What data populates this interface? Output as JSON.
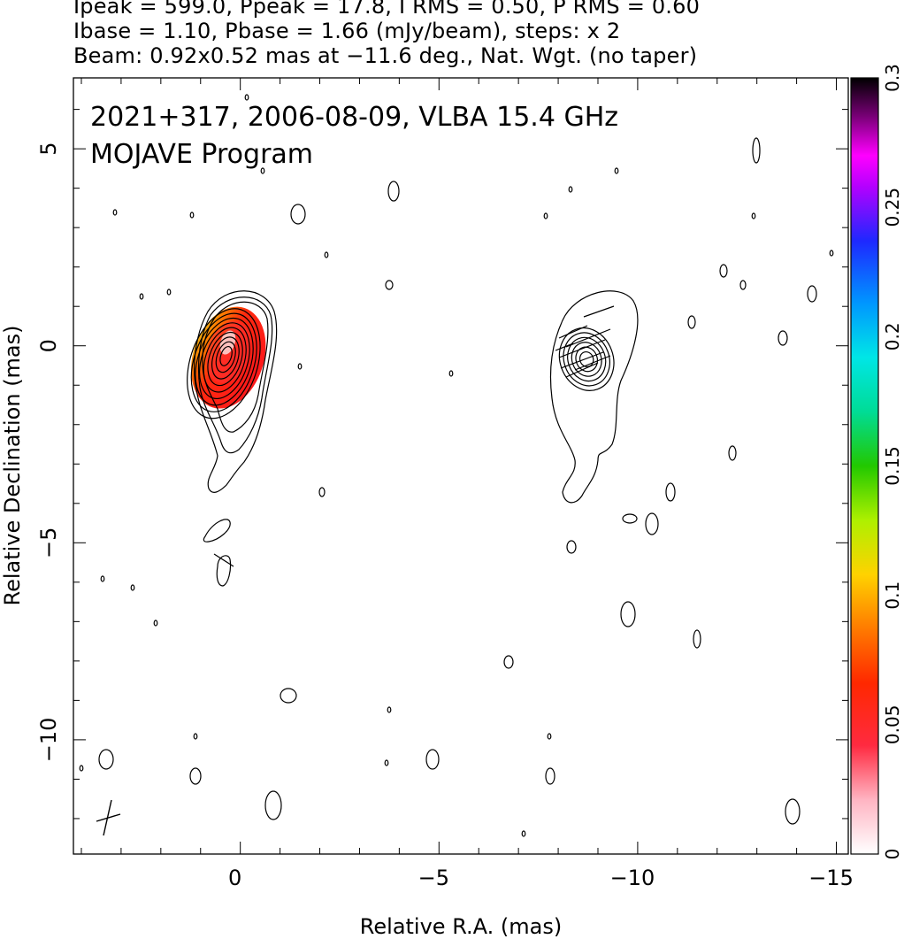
{
  "header": {
    "line1": "Ipeak = 599.0, Ppeak = 17.8, I RMS = 0.50, P RMS = 0.60",
    "line2": "Ibase = 1.10, Pbase = 1.66 (mJy/beam), steps: x 2",
    "line3": "Beam: 0.92x0.52 mas at −11.6 deg., Nat. Wgt. (no taper)"
  },
  "chart_data": {
    "type": "heatmap",
    "title": "2021+317, 2006-08-09, VLBA 15.4 GHz",
    "subtitle": "MOJAVE Program",
    "xlabel": "Relative R.A. (mas)",
    "ylabel": "Relative Declination (mas)",
    "xlim": [
      4.2,
      -15.3
    ],
    "ylim": [
      -12.9,
      6.8
    ],
    "x_ticks": [
      0,
      -5,
      -10,
      -15
    ],
    "x_tick_labels": [
      "0",
      "−5",
      "−10",
      "−15"
    ],
    "y_ticks": [
      5,
      0,
      -5,
      -10
    ],
    "y_tick_labels": [
      "5",
      "0",
      "−5",
      "−10"
    ],
    "colorbar": {
      "range": [
        0,
        0.3
      ],
      "ticks": [
        0,
        0.05,
        0.1,
        0.15,
        0.2,
        0.25,
        0.3
      ],
      "tick_labels": [
        "0",
        "0.05",
        "0.1",
        "0.15",
        "0.2",
        "0.25",
        "0.3"
      ]
    },
    "panels": [
      {
        "name": "total intensity with fractional polarization",
        "center_ra": 0.3,
        "center_dec": -0.3
      },
      {
        "name": "polarized intensity with EVPA ticks",
        "center_ra": -8.7,
        "center_dec": -0.3
      }
    ],
    "beam": {
      "major_mas": 0.92,
      "minor_mas": 0.52,
      "pa_deg": -11.6
    }
  }
}
